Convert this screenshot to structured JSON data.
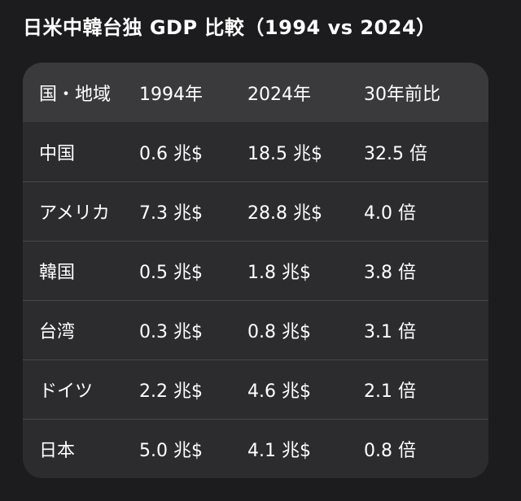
{
  "title": "日米中韓台独 GDP 比較（1994 vs 2024）",
  "table": {
    "headers": [
      "国・地域",
      "1994年",
      "2024年",
      "30年前比"
    ],
    "rows": [
      {
        "country": "中国",
        "gdp_1994": "0.6 兆$",
        "gdp_2024": "18.5 兆$",
        "ratio": "32.5 倍"
      },
      {
        "country": "アメリカ",
        "gdp_1994": "7.3 兆$",
        "gdp_2024": "28.8 兆$",
        "ratio": "4.0 倍"
      },
      {
        "country": "韓国",
        "gdp_1994": "0.5 兆$",
        "gdp_2024": "1.8 兆$",
        "ratio": "3.8 倍"
      },
      {
        "country": "台湾",
        "gdp_1994": "0.3 兆$",
        "gdp_2024": "0.8 兆$",
        "ratio": "3.1 倍"
      },
      {
        "country": "ドイツ",
        "gdp_1994": "2.2 兆$",
        "gdp_2024": "4.6 兆$",
        "ratio": "2.1 倍"
      },
      {
        "country": "日本",
        "gdp_1994": "5.0 兆$",
        "gdp_2024": "4.1 兆$",
        "ratio": "0.8 倍"
      }
    ]
  }
}
